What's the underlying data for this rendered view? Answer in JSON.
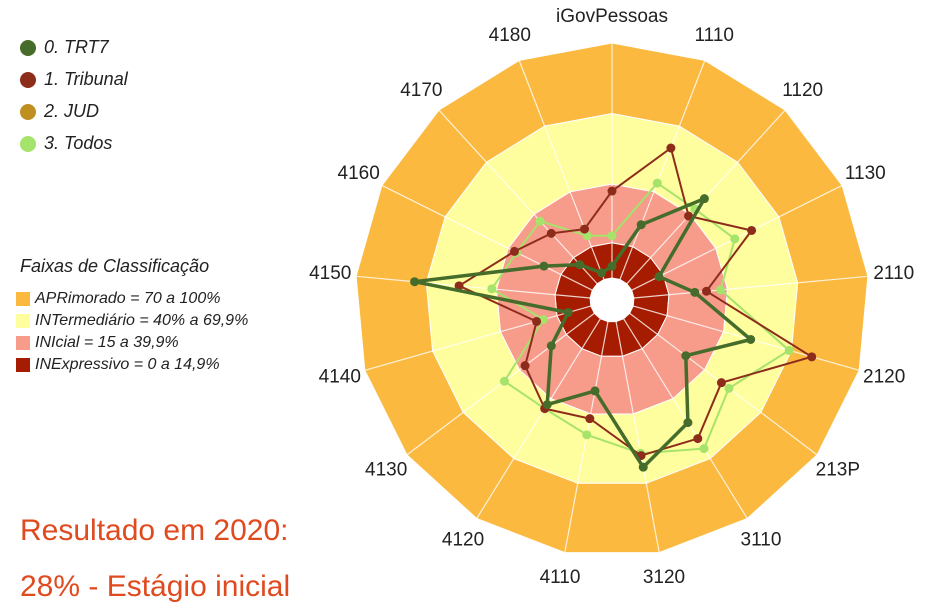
{
  "chart_data": {
    "type": "radar",
    "title": "iGovPessoas",
    "categories": [
      "iGovPessoas",
      "1110",
      "1120",
      "1130",
      "2110",
      "2120",
      "213P",
      "3110",
      "3120",
      "4110",
      "4120",
      "4130",
      "4140",
      "4150",
      "4160",
      "4170",
      "4180"
    ],
    "rlim": [
      0,
      100
    ],
    "series": [
      {
        "name": "0. TRT7",
        "color": "#466c2b",
        "values": [
          5,
          25,
          49,
          13,
          26,
          52,
          30,
          52,
          63,
          30,
          43,
          23,
          10,
          75,
          23,
          11,
          3
        ]
      },
      {
        "name": "1. Tribunal",
        "color": "#8e2c1c",
        "values": [
          37,
          60,
          39,
          57,
          31,
          79,
          49,
          60,
          58,
          42,
          45,
          37,
          24,
          56,
          37,
          29,
          23
        ]
      },
      {
        "name": "2. JUD",
        "color": "#bf9020",
        "values": [
          null,
          null,
          null,
          null,
          null,
          null,
          null,
          null,
          null,
          null,
          null,
          null,
          null,
          null,
          null,
          null,
          null
        ]
      },
      {
        "name": "3. Todos",
        "color": "#a6e36b",
        "values": [
          18,
          44,
          43,
          49,
          37,
          69,
          53,
          65,
          57,
          49,
          45,
          48,
          21,
          42,
          36,
          36,
          20
        ]
      }
    ],
    "bands_title": "Faixas de Classificação",
    "bands": [
      {
        "name": "INExpressivo = 0 a 14,9%",
        "color": "#a61c00",
        "value": 15
      },
      {
        "name": "INIcial = 15 a 39,9%",
        "color": "#f79b8a",
        "value": 25
      },
      {
        "name": "INTermediário = 40% a 69,9%",
        "color": "#fffe9e",
        "value": 30
      },
      {
        "name": "APRimorado = 70 a 100%",
        "color": "#fbb93f",
        "value": 30
      }
    ],
    "annotations": [
      "Resultado em 2020:",
      "28% - Estágio inicial"
    ]
  }
}
